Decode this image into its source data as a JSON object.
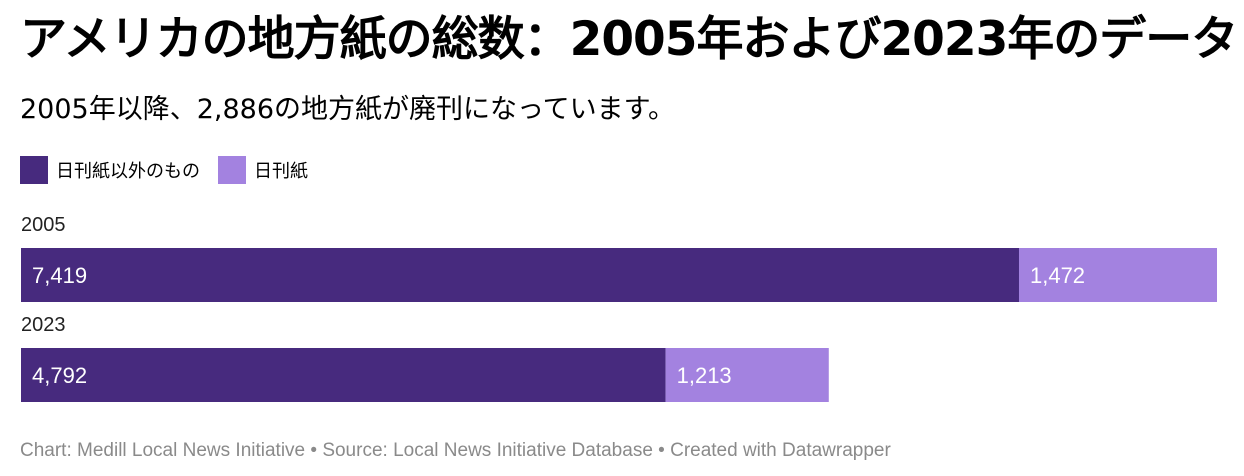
{
  "title": "アメリカの地方紙の総数：2005年および2023年のデータ",
  "subtitle": "2005年以降、2,886の地方紙が廃刊になっています。",
  "legend": {
    "items": [
      {
        "label": "日刊紙以外のもの",
        "color": "#472a7e"
      },
      {
        "label": "日刊紙",
        "color": "#a382e0"
      }
    ]
  },
  "chart_data": {
    "type": "bar",
    "orientation": "horizontal",
    "stacked": true,
    "categories": [
      "2005",
      "2023"
    ],
    "series": [
      {
        "name": "日刊紙以外のもの",
        "values": [
          7419,
          4792
        ],
        "labels": [
          "7,419",
          "4,792"
        ],
        "color": "#472a7e"
      },
      {
        "name": "日刊紙",
        "values": [
          1472,
          1213
        ],
        "labels": [
          "1,472",
          "1,213"
        ],
        "color": "#a382e0"
      }
    ],
    "xlim": [
      0,
      8891
    ],
    "grid": false,
    "legend_position": "top-left"
  },
  "footer": {
    "text": "Chart: Medill Local News Initiative • Source: Local News Initiative Database • Created with Datawrapper"
  }
}
